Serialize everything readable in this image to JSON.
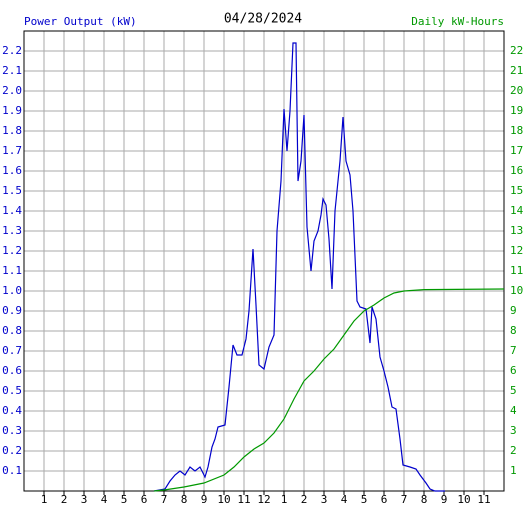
{
  "chart_data": {
    "type": "line",
    "title": "04/28/2024",
    "xlim": [
      0,
      24
    ],
    "xticks": [
      1,
      2,
      3,
      4,
      5,
      6,
      7,
      8,
      9,
      10,
      11,
      12,
      {
        "value": 13,
        "label": "1"
      },
      {
        "value": 14,
        "label": "2"
      },
      {
        "value": 15,
        "label": "3"
      },
      {
        "value": 16,
        "label": "4"
      },
      {
        "value": 17,
        "label": "5"
      },
      {
        "value": 18,
        "label": "6"
      },
      {
        "value": 19,
        "label": "7"
      },
      {
        "value": 20,
        "label": "8"
      },
      {
        "value": 21,
        "label": "9"
      },
      {
        "value": 22,
        "label": "10"
      },
      {
        "value": 23,
        "label": "11"
      }
    ],
    "ylim": [
      0,
      2.3
    ],
    "yticks": [
      0.1,
      0.2,
      0.3,
      0.4,
      0.5,
      0.6,
      0.7,
      0.8,
      0.9,
      {
        "value": 1,
        "label": "1.0"
      },
      1.1,
      1.2,
      1.3,
      1.4,
      1.5,
      1.6,
      1.7,
      1.8,
      1.9,
      {
        "value": 2,
        "label": "2.0"
      },
      2.1,
      2.2
    ],
    "y2lim": [
      0,
      23
    ],
    "y2ticks": [
      1,
      2,
      3,
      4,
      5,
      6,
      7,
      8,
      9,
      10,
      11,
      12,
      13,
      14,
      15,
      16,
      17,
      18,
      19,
      20,
      21,
      22
    ],
    "grid": true,
    "series": [
      {
        "name": "Power Output (kW)",
        "color": "#0000cc",
        "x": [
          6.5,
          7.05,
          7.3,
          7.55,
          7.8,
          8.05,
          8.3,
          8.55,
          8.8,
          9.05,
          9.2,
          9.4,
          9.55,
          9.7,
          10.05,
          10.25,
          10.45,
          10.65,
          10.9,
          11.1,
          11.25,
          11.45,
          11.6,
          11.75,
          12,
          12.25,
          12.5,
          12.65,
          12.85,
          13,
          13.15,
          13.3,
          13.45,
          13.6,
          13.7,
          13.85,
          14,
          14.15,
          14.35,
          14.5,
          14.7,
          14.85,
          14.95,
          15.1,
          15.25,
          15.4,
          15.55,
          15.8,
          15.95,
          16.1,
          16.3,
          16.45,
          16.65,
          16.8,
          17.1,
          17.3,
          17.4,
          17.6,
          17.8,
          18,
          18.2,
          18.4,
          18.6,
          18.8,
          18.95,
          19.3,
          19.6,
          19.8,
          20.1,
          20.3,
          20.55,
          21.05
        ],
        "values": [
          0,
          0.01,
          0.05,
          0.08,
          0.1,
          0.08,
          0.12,
          0.1,
          0.12,
          0.07,
          0.12,
          0.22,
          0.26,
          0.32,
          0.33,
          0.52,
          0.73,
          0.68,
          0.68,
          0.76,
          0.9,
          1.21,
          0.93,
          0.63,
          0.61,
          0.72,
          0.78,
          1.3,
          1.55,
          1.91,
          1.7,
          1.9,
          2.24,
          2.24,
          1.55,
          1.65,
          1.88,
          1.32,
          1.1,
          1.25,
          1.3,
          1.38,
          1.46,
          1.43,
          1.26,
          1.01,
          1.4,
          1.65,
          1.87,
          1.65,
          1.58,
          1.4,
          0.95,
          0.92,
          0.91,
          0.74,
          0.92,
          0.86,
          0.67,
          0.6,
          0.52,
          0.42,
          0.41,
          0.26,
          0.13,
          0.12,
          0.11,
          0.08,
          0.04,
          0.01,
          0,
          0
        ]
      },
      {
        "name": "Daily kW-Hours",
        "color": "#009900",
        "axis": "y2",
        "x": [
          6.5,
          7,
          8,
          9,
          10,
          10.5,
          11,
          11.5,
          12,
          12.5,
          13,
          13.5,
          14,
          14.5,
          15,
          15.5,
          16,
          16.5,
          17,
          17.5,
          18,
          18.5,
          19,
          20,
          24
        ],
        "values": [
          0,
          0.05,
          0.2,
          0.4,
          0.8,
          1.2,
          1.7,
          2.1,
          2.4,
          2.9,
          3.6,
          4.6,
          5.5,
          6.0,
          6.6,
          7.1,
          7.8,
          8.5,
          9.0,
          9.3,
          9.65,
          9.9,
          10.0,
          10.07,
          10.1
        ]
      }
    ]
  }
}
